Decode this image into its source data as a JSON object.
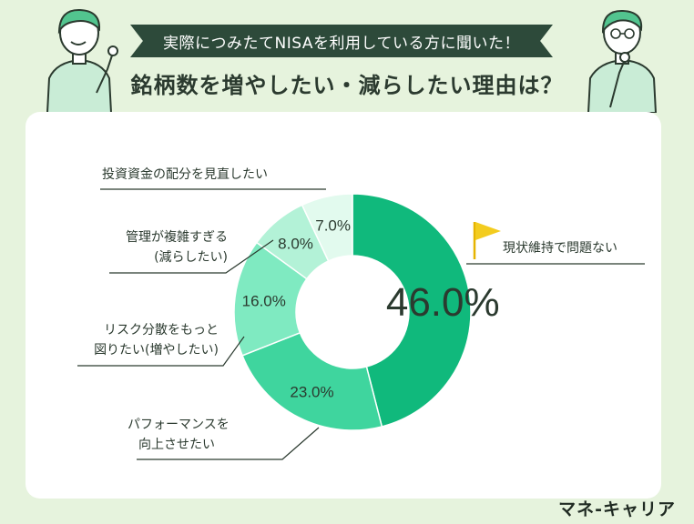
{
  "header": {
    "banner_text": "実際につみたてNISAを利用している方に聞いた！",
    "title": "銘柄数を増やしたい・減らしたい理由は？"
  },
  "brand": "マネ-キャリア",
  "colors": {
    "background": "#e6f3dd",
    "banner": "#2d4a3a",
    "flag": "#f3cc1f"
  },
  "chart_data": {
    "type": "pie",
    "donut": true,
    "start_angle_deg": 0,
    "direction": "clockwise",
    "slices": [
      {
        "label": "現状維持で問題ない",
        "value": 46.0,
        "value_label": "46.0%",
        "color": "#10b97c"
      },
      {
        "label": "パフォーマンスを向上させたい",
        "value": 23.0,
        "value_label": "23.0%",
        "color": "#3fd59e"
      },
      {
        "label": "リスク分散をもっと図りたい(増やしたい)",
        "value": 16.0,
        "value_label": "16.0%",
        "color": "#7feac1"
      },
      {
        "label": "管理が複雑すぎる(減らしたい)",
        "value": 8.0,
        "value_label": "8.0%",
        "color": "#b3f2d7"
      },
      {
        "label": "投資資金の配分を見直したい",
        "value": 7.0,
        "value_label": "7.0%",
        "color": "#e2faee"
      }
    ]
  },
  "labels": {
    "status_quo": "現状維持で問題ない",
    "performance_line1": "パフォーマンスを",
    "performance_line2": "向上させたい",
    "risk_line1": "リスク分散をもっと",
    "risk_line2": "図りたい(増やしたい)",
    "complex_line1": "管理が複雑すぎる",
    "complex_line2": "(減らしたい)",
    "allocation": "投資資金の配分を見直したい"
  }
}
